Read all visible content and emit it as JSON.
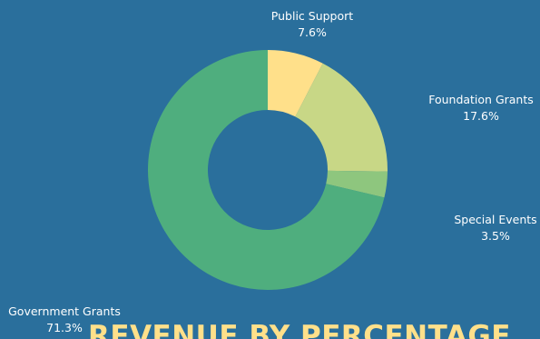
{
  "colors": {
    "background": "#2a6f9c",
    "label_text": "#ffffff",
    "title_text": "#ffe08a"
  },
  "chart_data": {
    "type": "pie",
    "style": "donut",
    "title": "REVENUE BY PERCENTAGE",
    "legend": "none",
    "slices": [
      {
        "name": "Public Support",
        "value": 7.6,
        "label": "7.6%",
        "color": "#ffe08a"
      },
      {
        "name": "Foundation Grants",
        "value": 17.6,
        "label": "17.6%",
        "color": "#c8d786"
      },
      {
        "name": "Special Events",
        "value": 3.5,
        "label": "3.5%",
        "color": "#8ec67e"
      },
      {
        "name": "Government Grants",
        "value": 71.3,
        "label": "71.3%",
        "color": "#4fae7e"
      }
    ]
  }
}
